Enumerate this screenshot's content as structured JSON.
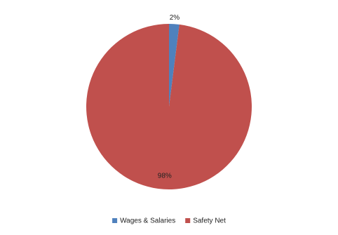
{
  "chart_data": {
    "type": "pie",
    "categories": [
      "Wages & Salaries",
      "Safety Net"
    ],
    "values": [
      2,
      98
    ],
    "value_labels": [
      "2%",
      "98%"
    ],
    "colors": [
      "#4f81bd",
      "#c0504d"
    ],
    "legend": "bottom"
  }
}
